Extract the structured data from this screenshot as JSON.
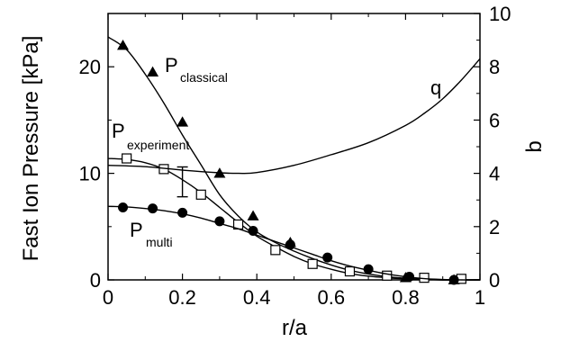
{
  "chart_data": {
    "type": "line",
    "xlabel": "r/a",
    "ylabel": "Fast Ion Pressure [kPa]",
    "ylabel_right": "b",
    "xlim": [
      0,
      1
    ],
    "ylim": [
      0,
      25
    ],
    "ylim_right": [
      0,
      10
    ],
    "xticks": [
      "0",
      "0.2",
      "0.4",
      "0.6",
      "0.8",
      "1"
    ],
    "yticks": [
      "0",
      "10",
      "20"
    ],
    "yticks_right": [
      "0",
      "2",
      "4",
      "6",
      "8",
      "10"
    ],
    "grid": false,
    "series": [
      {
        "name": "P",
        "subscript": "classical",
        "axis": "left",
        "marker": "triangle-filled",
        "curve": {
          "x": [
            0,
            0.05,
            0.1,
            0.15,
            0.2,
            0.25,
            0.3,
            0.35,
            0.4,
            0.45,
            0.5,
            0.55,
            0.6,
            0.65,
            0.7,
            0.75,
            0.8,
            0.85,
            0.9,
            0.95,
            1.0
          ],
          "y": [
            22.8,
            21.6,
            19.3,
            16.6,
            13.6,
            10.8,
            8.0,
            6.0,
            4.5,
            3.5,
            2.7,
            2.0,
            1.4,
            0.9,
            0.55,
            0.3,
            0.15,
            0.05,
            0.0,
            0.0,
            0.0
          ]
        },
        "points": {
          "x": [
            0.04,
            0.12,
            0.2,
            0.3,
            0.39,
            0.49,
            0.8,
            0.93
          ],
          "y": [
            22.0,
            19.5,
            14.8,
            10.0,
            6.0,
            3.5,
            0.2,
            0.0
          ]
        }
      },
      {
        "name": "P",
        "subscript": "experiment",
        "axis": "left",
        "marker": "square-open",
        "curve": {
          "x": [
            0,
            0.05,
            0.1,
            0.15,
            0.2,
            0.25,
            0.3,
            0.35,
            0.4,
            0.45,
            0.5,
            0.55,
            0.6,
            0.65,
            0.7,
            0.75,
            0.8,
            0.85,
            0.9,
            0.95,
            1.0
          ],
          "y": [
            11.4,
            11.3,
            11.0,
            10.4,
            9.4,
            8.2,
            6.8,
            5.4,
            4.1,
            3.1,
            2.2,
            1.5,
            1.0,
            0.6,
            0.35,
            0.2,
            0.1,
            0.04,
            0.0,
            0.0,
            0.0
          ]
        },
        "points": {
          "x": [
            0.05,
            0.15,
            0.25,
            0.35,
            0.45,
            0.55,
            0.65,
            0.75,
            0.85,
            0.95
          ],
          "y": [
            11.4,
            10.4,
            8.0,
            5.2,
            2.8,
            1.5,
            0.8,
            0.4,
            0.2,
            0.1
          ]
        },
        "error_bar": {
          "x": 0.2,
          "low": 7.8,
          "high": 10.6
        }
      },
      {
        "name": "P",
        "subscript": "multi",
        "axis": "left",
        "marker": "circle-filled",
        "curve": {
          "x": [
            0,
            0.05,
            0.1,
            0.15,
            0.2,
            0.25,
            0.3,
            0.35,
            0.4,
            0.45,
            0.5,
            0.55,
            0.6,
            0.65,
            0.7,
            0.75,
            0.8,
            0.85,
            0.9,
            0.95,
            1.0
          ],
          "y": [
            6.9,
            6.85,
            6.7,
            6.5,
            6.2,
            5.8,
            5.3,
            4.8,
            4.2,
            3.6,
            3.0,
            2.4,
            1.8,
            1.3,
            0.9,
            0.55,
            0.3,
            0.12,
            0.04,
            0.0,
            0.0
          ]
        },
        "points": {
          "x": [
            0.04,
            0.12,
            0.2,
            0.3,
            0.39,
            0.49,
            0.59,
            0.7,
            0.81,
            0.93
          ],
          "y": [
            6.8,
            6.7,
            6.3,
            5.5,
            4.6,
            3.3,
            2.1,
            1.0,
            0.3,
            0.0
          ]
        }
      },
      {
        "name": "q",
        "axis": "right",
        "marker": "none",
        "curve": {
          "x": [
            0,
            0.1,
            0.2,
            0.3,
            0.35,
            0.4,
            0.5,
            0.6,
            0.7,
            0.8,
            0.85,
            0.9,
            0.95,
            1.0
          ],
          "y": [
            4.3,
            4.25,
            4.12,
            4.02,
            4.0,
            4.03,
            4.3,
            4.7,
            5.15,
            5.8,
            6.25,
            6.8,
            7.5,
            8.3
          ]
        }
      }
    ]
  }
}
